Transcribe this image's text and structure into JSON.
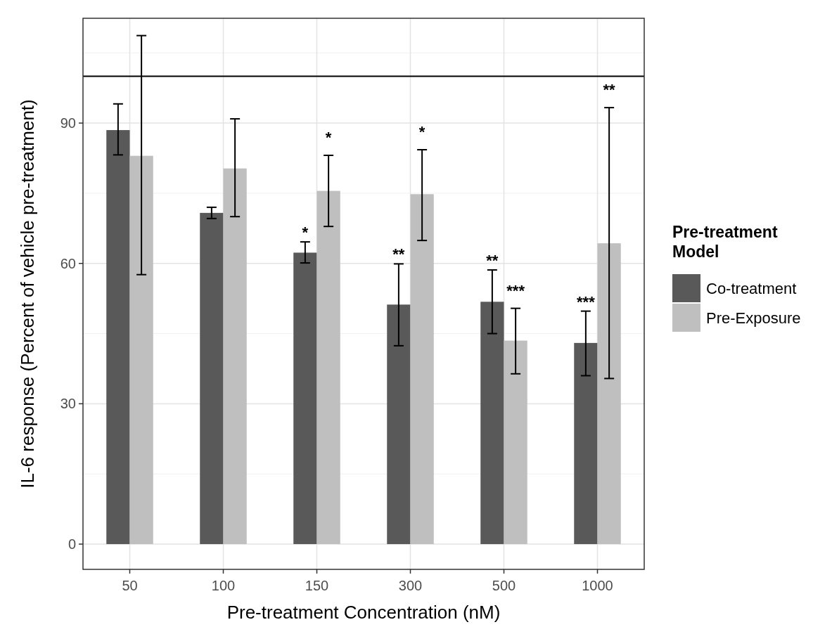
{
  "chart_data": {
    "type": "bar",
    "xlabel": "Pre-treatment Concentration (nM)",
    "ylabel": "IL-6 response (Percent of vehicle pre-treatment)",
    "legend_title": "Pre-treatment Model",
    "categories": [
      "50",
      "100",
      "150",
      "300",
      "500",
      "1000"
    ],
    "series": [
      {
        "name": "Co-treatment",
        "color": "#595959",
        "values": [
          88.5,
          70.8,
          62.3,
          51.2,
          51.8,
          43
        ],
        "errors": [
          [
            83.2,
            94.1
          ],
          [
            69.6,
            72
          ],
          [
            60.1,
            64.6
          ],
          [
            42.4,
            59.9
          ],
          [
            45,
            58.6
          ],
          [
            36,
            49.8
          ]
        ]
      },
      {
        "name": "Pre-Exposure",
        "color": "#bfbfbf",
        "values": [
          83,
          80.3,
          75.5,
          74.8,
          43.5,
          64.3
        ],
        "errors": [
          [
            57.6,
            108.7
          ],
          [
            70,
            90.9
          ],
          [
            67.9,
            83.1
          ],
          [
            64.9,
            84.3
          ],
          [
            36.4,
            50.4
          ],
          [
            35.4,
            93.3
          ]
        ]
      }
    ],
    "ylim": [
      -5.4,
      112.4
    ],
    "yticks": [
      0,
      30,
      60,
      90
    ],
    "grid": true,
    "legend": "right",
    "ref_lines": [
      {
        "axis": "y",
        "value": 100
      }
    ],
    "annotations": [
      "*",
      "*",
      "**",
      "*",
      "**",
      "***",
      "***",
      "**"
    ]
  }
}
